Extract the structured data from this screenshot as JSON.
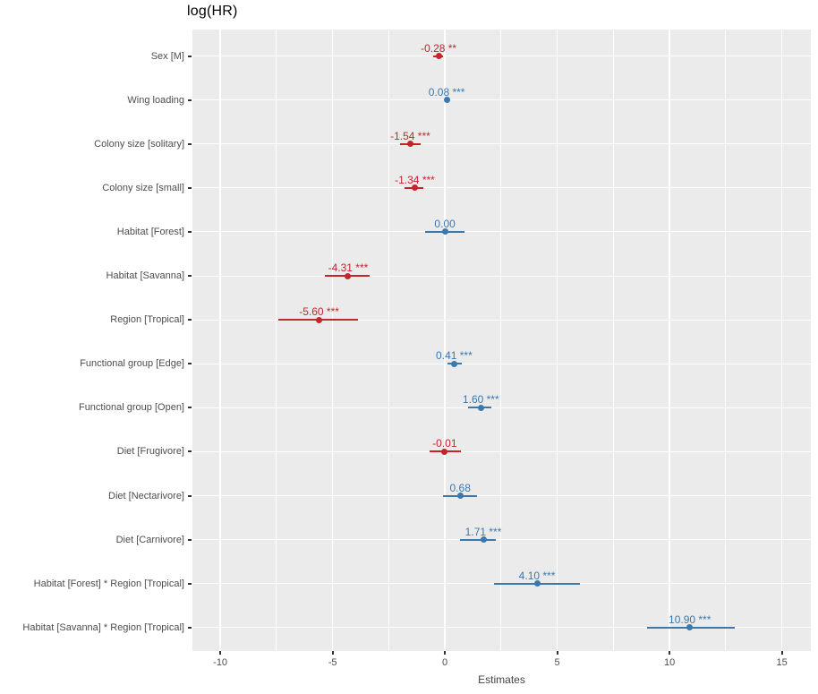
{
  "title": "log(HR)",
  "colors": {
    "positive": "#3B78AC",
    "negative": "#C4252B",
    "panel_bg": "#EBEBEB",
    "grid": "#FFFFFF",
    "axis_text": "#4D4D4D",
    "tick_mark": "#333333",
    "title_text": "#000000"
  },
  "chart_data": {
    "type": "scatter",
    "subtype": "forest-plot-with-ci",
    "title": "log(HR)",
    "xlabel": "Estimates",
    "xlim": [
      -11.24,
      16.29
    ],
    "xticks": [
      -10,
      -5,
      0,
      5,
      10,
      15
    ],
    "xtick_labels": [
      "-10",
      "-5",
      "0",
      "5",
      "10",
      "15"
    ],
    "minor_gridlines": [
      -7.5,
      -2.5,
      2.5,
      7.5,
      12.5
    ],
    "grid": true,
    "legend": false,
    "rows": [
      {
        "label": "Sex [M]",
        "estimate": -0.28,
        "display": "-0.28",
        "sig": "**",
        "ci": [
          -0.52,
          -0.08
        ],
        "sign": "negative"
      },
      {
        "label": "Wing loading",
        "estimate": 0.08,
        "display": "0.08",
        "sig": "***",
        "ci": [
          0.04,
          0.12
        ],
        "sign": "positive"
      },
      {
        "label": "Colony size [solitary]",
        "estimate": -1.54,
        "display": "-1.54",
        "sig": "***",
        "ci": [
          -2.0,
          -1.1
        ],
        "sign": "negative"
      },
      {
        "label": "Colony size [small]",
        "estimate": -1.34,
        "display": "-1.34",
        "sig": "***",
        "ci": [
          -1.8,
          -0.95
        ],
        "sign": "negative"
      },
      {
        "label": "Habitat [Forest]",
        "estimate": 0.0,
        "display": "0.00",
        "sig": "",
        "ci": [
          -0.9,
          0.89
        ],
        "sign": "positive"
      },
      {
        "label": "Habitat [Savanna]",
        "estimate": -4.31,
        "display": "-4.31",
        "sig": "***",
        "ci": [
          -5.35,
          -3.35
        ],
        "sign": "negative"
      },
      {
        "label": "Region [Tropical]",
        "estimate": -5.6,
        "display": "-5.60",
        "sig": "***",
        "ci": [
          -7.4,
          -3.85
        ],
        "sign": "negative"
      },
      {
        "label": "Functional group [Edge]",
        "estimate": 0.41,
        "display": "0.41",
        "sig": "***",
        "ci": [
          0.1,
          0.75
        ],
        "sign": "positive"
      },
      {
        "label": "Functional group [Open]",
        "estimate": 1.6,
        "display": "1.60",
        "sig": "***",
        "ci": [
          1.05,
          2.05
        ],
        "sign": "positive"
      },
      {
        "label": "Diet [Frugivore]",
        "estimate": -0.01,
        "display": "-0.01",
        "sig": "",
        "ci": [
          -0.7,
          0.7
        ],
        "sign": "negative"
      },
      {
        "label": "Diet [Nectarivore]",
        "estimate": 0.68,
        "display": "0.68",
        "sig": "",
        "ci": [
          -0.08,
          1.42
        ],
        "sign": "positive"
      },
      {
        "label": "Diet [Carnivore]",
        "estimate": 1.71,
        "display": "1.71",
        "sig": "***",
        "ci": [
          0.69,
          2.25
        ],
        "sign": "positive"
      },
      {
        "label": "Habitat [Forest] * Region [Tropical]",
        "estimate": 4.1,
        "display": "4.10",
        "sig": "***",
        "ci": [
          2.2,
          6.0
        ],
        "sign": "positive"
      },
      {
        "label": "Habitat [Savanna] * Region [Tropical]",
        "estimate": 10.9,
        "display": "10.90",
        "sig": "***",
        "ci": [
          9.0,
          12.9
        ],
        "sign": "positive"
      }
    ]
  }
}
